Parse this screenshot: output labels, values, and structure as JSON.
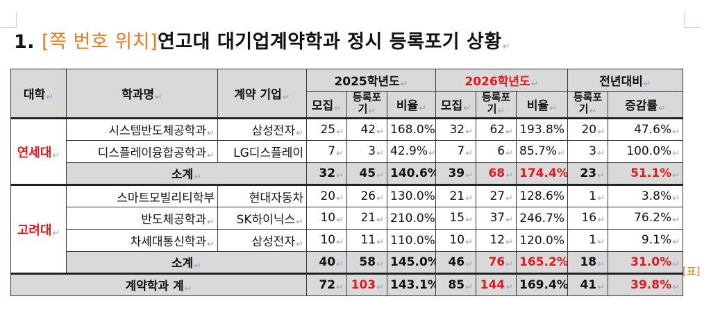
{
  "title": {
    "number": "1.",
    "bracket": "[쪽 번호 위치]",
    "text": "연고대 대기업계약학과 정시 등록포기 상황"
  },
  "headers": {
    "univ": "대학",
    "dept": "학과명",
    "company": "계약 기업",
    "y2025": "2025학년도",
    "y2026": "2026학년도",
    "yoy": "전년대비",
    "recruit": "모집",
    "forfeit": "등록포기",
    "ratio": "비율",
    "change": "증감률"
  },
  "side_label": "[표]",
  "universities": [
    {
      "name": "연세대",
      "rows": [
        {
          "dept": "시스템반도체공학과",
          "company": "삼성전자",
          "r25": "25",
          "f25": "42",
          "p25": "168.0%",
          "r26": "32",
          "f26": "62",
          "p26": "193.8%",
          "yoy_f": "20",
          "yoy_p": "47.6%"
        },
        {
          "dept": "디스플레이융합공학과",
          "company": "LG디스플레이",
          "r25": "7",
          "f25": "3",
          "p25": "42.9%",
          "r26": "7",
          "f26": "6",
          "p26": "85.7%",
          "yoy_f": "3",
          "yoy_p": "100.0%"
        }
      ],
      "subtotal": {
        "label": "소계",
        "r25": "32",
        "f25": "45",
        "p25": "140.6%",
        "r26": "39",
        "f26": "68",
        "p26": "174.4%",
        "yoy_f": "23",
        "yoy_p": "51.1%"
      }
    },
    {
      "name": "고려대",
      "rows": [
        {
          "dept": "스마트모빌리티학부",
          "company": "현대자동차",
          "r25": "20",
          "f25": "26",
          "p25": "130.0%",
          "r26": "21",
          "f26": "27",
          "p26": "128.6%",
          "yoy_f": "1",
          "yoy_p": "3.8%"
        },
        {
          "dept": "반도체공학과",
          "company": "SK하이닉스",
          "r25": "10",
          "f25": "21",
          "p25": "210.0%",
          "r26": "15",
          "f26": "37",
          "p26": "246.7%",
          "yoy_f": "16",
          "yoy_p": "76.2%"
        },
        {
          "dept": "차세대통신학과",
          "company": "삼성전자",
          "r25": "10",
          "f25": "11",
          "p25": "110.0%",
          "r26": "10",
          "f26": "12",
          "p26": "120.0%",
          "yoy_f": "1",
          "yoy_p": "9.1%"
        }
      ],
      "subtotal": {
        "label": "소계",
        "r25": "40",
        "f25": "58",
        "p25": "145.0%",
        "r26": "46",
        "f26": "76",
        "p26": "165.2%",
        "yoy_f": "18",
        "yoy_p": "31.0%"
      }
    }
  ],
  "total": {
    "label": "계약학과 계",
    "r25": "72",
    "f25": "103",
    "p25": "143.1%",
    "r26": "85",
    "f26": "144",
    "p26": "169.4%",
    "yoy_f": "41",
    "yoy_p": "39.8%"
  },
  "colors": {
    "accent_red": "#e0191e",
    "accent_orange": "#e07a1f",
    "header_gray": "#d9d9d9"
  }
}
